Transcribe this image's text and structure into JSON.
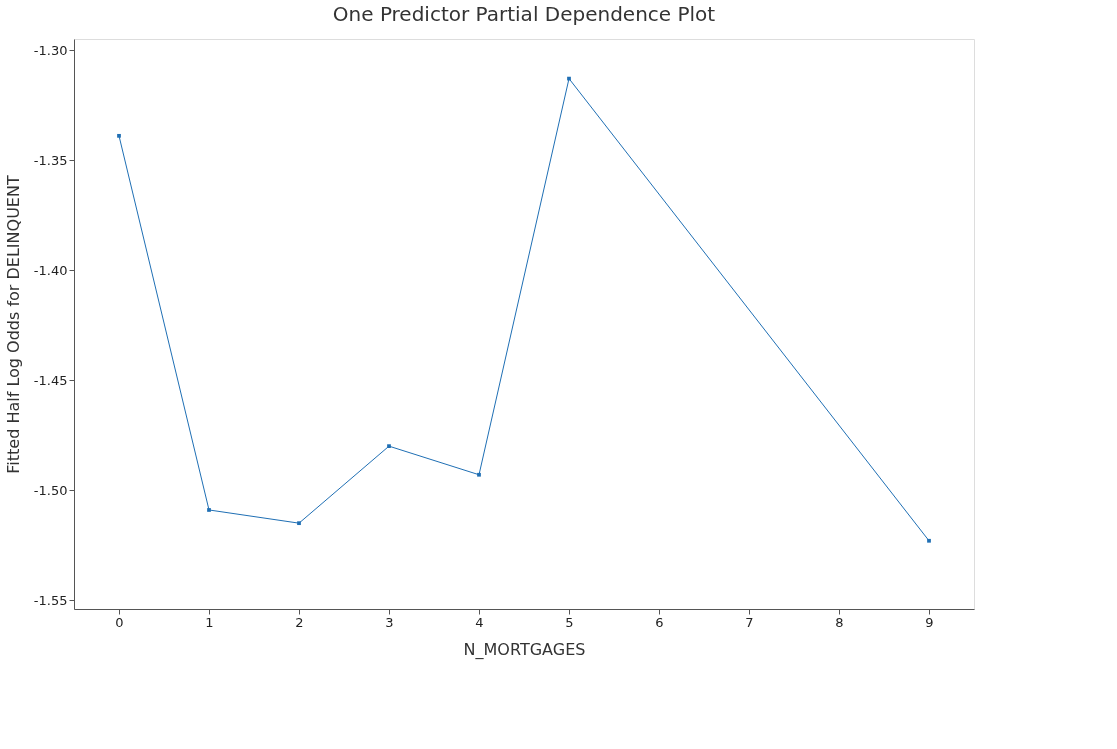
{
  "chart_data": {
    "type": "line",
    "title": "One Predictor Partial Dependence Plot",
    "xlabel": "N_MORTGAGES",
    "ylabel": "Fitted Half Log Odds for DELINQUENT",
    "x": [
      0,
      1,
      2,
      3,
      4,
      5,
      9
    ],
    "series": [
      {
        "color": "#1f6fb4",
        "values": [
          -1.339,
          -1.509,
          -1.515,
          -1.48,
          -1.493,
          -1.313,
          -1.523
        ]
      }
    ],
    "xlim": [
      -0.5,
      9.5
    ],
    "xticks": [
      0,
      1,
      2,
      3,
      4,
      5,
      6,
      7,
      8,
      9
    ],
    "ylim": [
      -1.554,
      -1.295
    ],
    "yticks": [
      {
        "value": -1.55,
        "label": "-1.55"
      },
      {
        "value": -1.5,
        "label": "-1.50"
      },
      {
        "value": -1.45,
        "label": "-1.45"
      },
      {
        "value": -1.4,
        "label": "-1.40"
      },
      {
        "value": -1.35,
        "label": "-1.35"
      },
      {
        "value": -1.3,
        "label": "-1.30"
      }
    ],
    "marker": "square",
    "line_style": "solid",
    "grid": false
  }
}
